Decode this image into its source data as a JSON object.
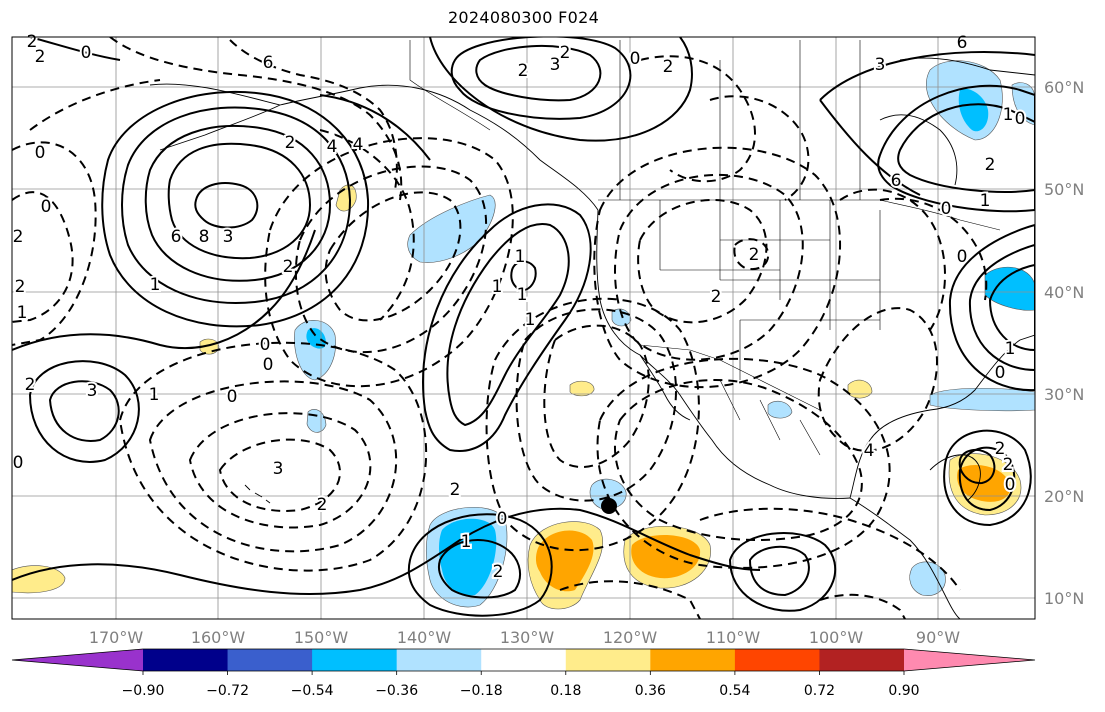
{
  "title": "2024080300 F024",
  "map": {
    "lon_labels": [
      "170°W",
      "160°W",
      "150°W",
      "140°W",
      "130°W",
      "120°W",
      "110°W",
      "100°W",
      "90°W"
    ],
    "lat_labels": [
      "60°N",
      "50°N",
      "40°N",
      "30°N",
      "20°N",
      "10°N"
    ],
    "gridlines": true,
    "contour_labels": [
      "2",
      "2",
      "6",
      "2",
      "3",
      "2",
      "0",
      "0",
      "2",
      "6",
      "3",
      "4",
      "2",
      "4",
      "6",
      "8",
      "3",
      "2",
      "1",
      "0",
      "2",
      "2",
      "0",
      "1",
      "0",
      "0",
      "2",
      "3",
      "1",
      "0",
      "3",
      "2",
      "0",
      "1",
      "1",
      "1",
      "1",
      "2",
      "0",
      "1",
      "2",
      "0",
      "1",
      "2",
      "1",
      "6",
      "2",
      "2",
      "0",
      "0",
      "4",
      "0",
      "1",
      "2",
      "2",
      "0"
    ]
  },
  "colorbar": {
    "ticks": [
      "−0.90",
      "−0.72",
      "−0.54",
      "−0.36",
      "−0.18",
      "0.18",
      "0.36",
      "0.54",
      "0.72",
      "0.90"
    ],
    "colors": [
      "#9932cc",
      "#00008b",
      "#3a5fcd",
      "#00bfff",
      "#b0e2ff",
      "#ffffff",
      "#ffec8b",
      "#ffa500",
      "#ff4500",
      "#b22222",
      "#ff8ab0"
    ]
  },
  "marker": {
    "color": "#000000",
    "label": ""
  }
}
